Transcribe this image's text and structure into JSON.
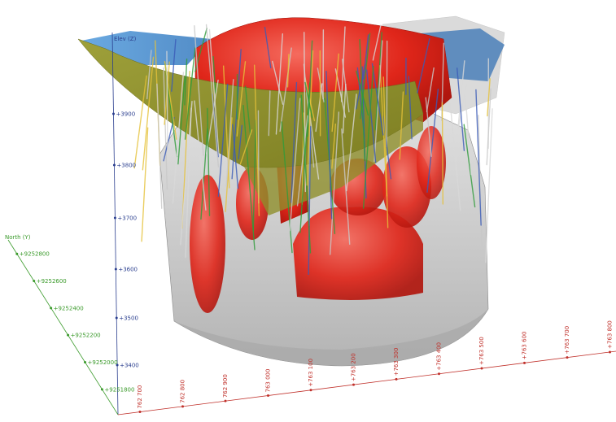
{
  "axes": {
    "z": {
      "title": "Elev (Z)",
      "color": "#2b3f8f",
      "ticks": [
        "+3900",
        "+3800",
        "+3700",
        "+3600",
        "+3500",
        "+3400"
      ]
    },
    "north": {
      "title": "North (Y)",
      "color": "#3a9a2a",
      "ticks": [
        "+9252800",
        "+9252600",
        "+9252400",
        "+9252200",
        "+9252000",
        "+9251800"
      ]
    },
    "east": {
      "color": "#c0302a",
      "ticks": [
        "762 700",
        "762 800",
        "762 900",
        "763 000",
        "+763 100",
        "+763 200",
        "+763 300",
        "+763 400",
        "+763 500",
        "+763 600",
        "+763 700",
        "+763 800"
      ]
    }
  },
  "colors": {
    "pit_shell": "#b4b4b4",
    "topography": "#4a8fd0",
    "orebody": "#e0261a",
    "fault_surface": "#8e8f2c",
    "drillholes": "#d8d8d8"
  }
}
